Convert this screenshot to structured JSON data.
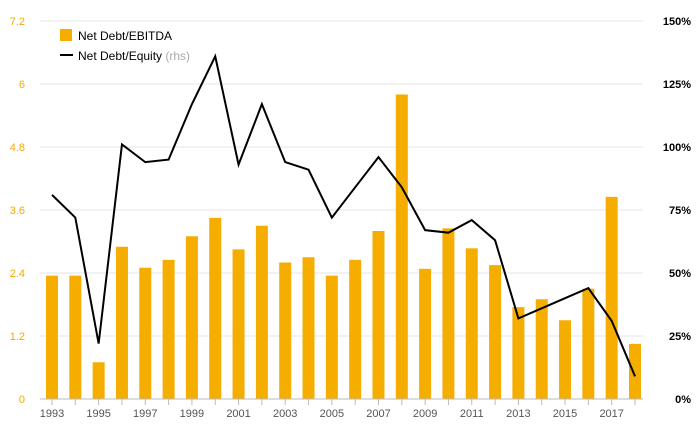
{
  "chart_data": {
    "type": "bar",
    "x": [
      1993,
      1994,
      1995,
      1996,
      1997,
      1998,
      1999,
      2000,
      2001,
      2002,
      2003,
      2004,
      2005,
      2006,
      2007,
      2008,
      2009,
      2010,
      2011,
      2012,
      2013,
      2014,
      2015,
      2016,
      2017,
      2018
    ],
    "x_tick_labels": [
      "1993",
      "1995",
      "1997",
      "1999",
      "2001",
      "2003",
      "2005",
      "2007",
      "2009",
      "2011",
      "2013",
      "2015",
      "2017"
    ],
    "series": [
      {
        "name": "Net Debt/EBITDA",
        "type": "bar",
        "axis": "left",
        "color": "#f5ad00",
        "values": [
          2.35,
          2.35,
          0.7,
          2.9,
          2.5,
          2.65,
          3.1,
          3.45,
          2.85,
          3.3,
          2.6,
          2.7,
          2.35,
          2.65,
          3.2,
          5.8,
          2.48,
          3.25,
          2.87,
          2.55,
          1.75,
          1.9,
          1.5,
          2.1,
          3.85,
          1.05
        ]
      },
      {
        "name": "Net Debt/Equity",
        "name_suffix": "(rhs)",
        "type": "line",
        "axis": "right",
        "color": "#000000",
        "values": [
          81,
          72,
          22,
          101,
          94,
          95,
          117,
          136,
          93,
          117,
          94,
          91,
          72,
          84,
          96,
          84,
          67,
          66,
          71,
          63,
          32,
          36,
          40,
          44,
          31,
          9
        ]
      }
    ],
    "y_left": {
      "min": 0,
      "max": 7.2,
      "ticks": [
        "0",
        "1.2",
        "2.4",
        "3.6",
        "4.8",
        "6",
        "7.2"
      ]
    },
    "y_right": {
      "min": 0,
      "max": 150,
      "ticks": [
        "0%",
        "25%",
        "50%",
        "75%",
        "100%",
        "125%",
        "150%"
      ]
    },
    "grid": "horizontal",
    "legend": "top-left",
    "title": "",
    "xlabel": "",
    "ylabel": ""
  }
}
